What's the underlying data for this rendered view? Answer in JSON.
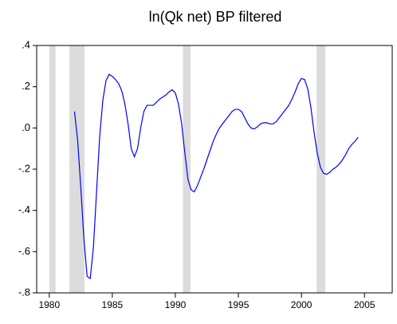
{
  "chart_data": {
    "type": "line",
    "title": "ln(Qk net) BP filtered",
    "x": [
      1982.0,
      1982.25,
      1982.5,
      1982.75,
      1983.0,
      1983.25,
      1983.5,
      1983.75,
      1984.0,
      1984.25,
      1984.5,
      1984.75,
      1985.0,
      1985.25,
      1985.5,
      1985.75,
      1986.0,
      1986.25,
      1986.5,
      1986.75,
      1987.0,
      1987.25,
      1987.5,
      1987.75,
      1988.0,
      1988.25,
      1988.5,
      1988.75,
      1989.0,
      1989.25,
      1989.5,
      1989.75,
      1990.0,
      1990.25,
      1990.5,
      1990.75,
      1991.0,
      1991.25,
      1991.5,
      1991.75,
      1992.0,
      1992.25,
      1992.5,
      1992.75,
      1993.0,
      1993.25,
      1993.5,
      1993.75,
      1994.0,
      1994.25,
      1994.5,
      1994.75,
      1995.0,
      1995.25,
      1995.5,
      1995.75,
      1996.0,
      1996.25,
      1996.5,
      1996.75,
      1997.0,
      1997.25,
      1997.5,
      1997.75,
      1998.0,
      1998.25,
      1998.5,
      1998.75,
      1999.0,
      1999.25,
      1999.5,
      1999.75,
      2000.0,
      2000.25,
      2000.5,
      2000.75,
      2001.0,
      2001.25,
      2001.5,
      2001.75,
      2002.0,
      2002.25,
      2002.5,
      2002.75,
      2003.0,
      2003.25,
      2003.5,
      2003.75,
      2004.0,
      2004.25,
      2004.5
    ],
    "series": [
      {
        "color": "#0000ff",
        "values": [
          0.08,
          -0.06,
          -0.29,
          -0.54,
          -0.72,
          -0.73,
          -0.58,
          -0.31,
          -0.04,
          0.135,
          0.23,
          0.26,
          0.25,
          0.235,
          0.215,
          0.18,
          0.115,
          0.02,
          -0.1,
          -0.14,
          -0.1,
          0.0,
          0.08,
          0.11,
          0.11,
          0.11,
          0.125,
          0.14,
          0.15,
          0.16,
          0.175,
          0.185,
          0.17,
          0.115,
          0.02,
          -0.12,
          -0.25,
          -0.3,
          -0.31,
          -0.28,
          -0.24,
          -0.2,
          -0.155,
          -0.11,
          -0.065,
          -0.03,
          0.0,
          0.02,
          0.04,
          0.06,
          0.08,
          0.09,
          0.09,
          0.08,
          0.05,
          0.02,
          0.0,
          -0.005,
          0.005,
          0.02,
          0.025,
          0.025,
          0.02,
          0.02,
          0.03,
          0.05,
          0.07,
          0.09,
          0.11,
          0.14,
          0.175,
          0.215,
          0.24,
          0.235,
          0.19,
          0.1,
          -0.02,
          -0.12,
          -0.19,
          -0.22,
          -0.225,
          -0.215,
          -0.2,
          -0.19,
          -0.175,
          -0.155,
          -0.13,
          -0.1,
          -0.08,
          -0.065,
          -0.045
        ]
      }
    ],
    "shaded_periods": [
      [
        1980.0,
        1980.5
      ],
      [
        1981.6,
        1982.8
      ],
      [
        1990.6,
        1991.2
      ],
      [
        2001.2,
        2001.9
      ]
    ],
    "shade_color": "#dcdcdc",
    "xlim": [
      1979.0,
      2007.2
    ],
    "xticks": [
      1980,
      1985,
      1990,
      1995,
      2000,
      2005
    ],
    "ylim": [
      -0.8,
      0.4
    ],
    "yticks": [
      {
        "value": -0.8,
        "label": "-.8"
      },
      {
        "value": -0.6,
        "label": "-.6"
      },
      {
        "value": -0.4,
        "label": "-.4"
      },
      {
        "value": -0.2,
        "label": "-.2"
      },
      {
        "value": 0.0,
        "label": ".0"
      },
      {
        "value": 0.2,
        "label": ".2"
      },
      {
        "value": 0.4,
        "label": ".4"
      }
    ],
    "grid": false
  }
}
